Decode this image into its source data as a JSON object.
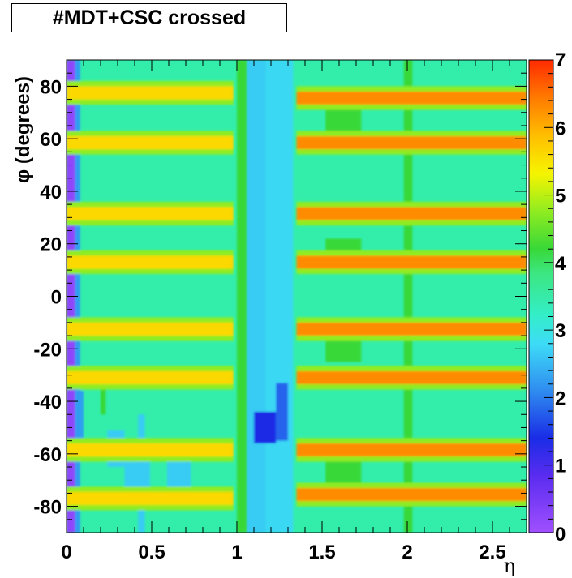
{
  "chart_data": {
    "type": "heatmap",
    "title": "#MDT+CSC crossed",
    "xlabel": "η",
    "ylabel": "φ (degrees)",
    "xlim": [
      0,
      2.7
    ],
    "ylim": [
      -90,
      90
    ],
    "zlim": [
      0,
      7
    ],
    "x_ticks": [
      {
        "value": 0,
        "label": "0"
      },
      {
        "value": 0.5,
        "label": "0.5"
      },
      {
        "value": 1,
        "label": "1"
      },
      {
        "value": 1.5,
        "label": "1.5"
      },
      {
        "value": 2,
        "label": "2"
      },
      {
        "value": 2.5,
        "label": "2.5"
      }
    ],
    "y_ticks": [
      {
        "value": 80,
        "label": "80"
      },
      {
        "value": 60,
        "label": "60"
      },
      {
        "value": 40,
        "label": "40"
      },
      {
        "value": 20,
        "label": "20"
      },
      {
        "value": 0,
        "label": "0"
      },
      {
        "value": -20,
        "label": "-20"
      },
      {
        "value": -40,
        "label": "-40"
      },
      {
        "value": -60,
        "label": "-60"
      },
      {
        "value": -80,
        "label": "-80"
      }
    ],
    "z_ticks": [
      {
        "value": 0,
        "label": "0"
      },
      {
        "value": 1,
        "label": "1"
      },
      {
        "value": 2,
        "label": "2"
      },
      {
        "value": 3,
        "label": "3"
      },
      {
        "value": 4,
        "label": "4"
      },
      {
        "value": 5,
        "label": "5"
      },
      {
        "value": 6,
        "label": "6"
      },
      {
        "value": 7,
        "label": "7"
      }
    ],
    "background_value": 3,
    "regions": [
      {
        "x": [
          0,
          0.05
        ],
        "y": [
          -90,
          90
        ],
        "value": 0.2
      },
      {
        "x": [
          0.05,
          0.08
        ],
        "y": [
          -90,
          90
        ],
        "value": 2
      },
      {
        "x": [
          0.08,
          0.1
        ],
        "y": [
          -58,
          -36
        ],
        "value": 2
      },
      {
        "x": [
          0.24,
          0.34
        ],
        "y": [
          -65,
          -51
        ],
        "value": 2.4
      },
      {
        "x": [
          0.34,
          0.49
        ],
        "y": [
          -76,
          -63
        ],
        "value": 2.4
      },
      {
        "x": [
          0.59,
          0.73
        ],
        "y": [
          -77,
          -63
        ],
        "value": 2.4
      },
      {
        "x": [
          1.05,
          1.17
        ],
        "y": [
          90,
          -90
        ],
        "value": 2.4
      },
      {
        "x": [
          1.17,
          1.33
        ],
        "y": [
          -90,
          90
        ],
        "value": 2.5
      },
      {
        "x": [
          1.1,
          1.23
        ],
        "y": [
          -44,
          -56
        ],
        "value": 1.2
      },
      {
        "x": [
          1.23,
          1.3
        ],
        "y": [
          -33,
          -55
        ],
        "value": 1.6
      },
      {
        "x": [
          1.0,
          1.06
        ],
        "y": [
          -90,
          90
        ],
        "value": 4
      },
      {
        "x": [
          1.52,
          1.73
        ],
        "y": [
          71,
          61
        ],
        "value": 4
      },
      {
        "x": [
          1.52,
          1.73
        ],
        "y": [
          22,
          12
        ],
        "value": 4
      },
      {
        "x": [
          1.52,
          1.73
        ],
        "y": [
          -16,
          -25
        ],
        "value": 4
      },
      {
        "x": [
          1.52,
          1.73
        ],
        "y": [
          -61,
          -71
        ],
        "value": 4
      },
      {
        "x": [
          1.98,
          2.03
        ],
        "y": [
          -90,
          90
        ],
        "value": 4
      },
      {
        "x": [
          0.42,
          0.46
        ],
        "y": [
          -45,
          -90
        ],
        "value": 2.4
      },
      {
        "x": [
          0.2,
          0.23
        ],
        "y": [
          -33,
          -45
        ],
        "value": 4
      }
    ],
    "stripes": [
      {
        "phi": 77.5,
        "x": [
          0.0,
          0.98
        ],
        "value": 5.5
      },
      {
        "phi": 58.5,
        "x": [
          0.0,
          0.98
        ],
        "value": 5.5
      },
      {
        "phi": 31.5,
        "x": [
          0.0,
          0.98
        ],
        "value": 5.5
      },
      {
        "phi": 13.0,
        "x": [
          0.0,
          0.98
        ],
        "value": 5.5
      },
      {
        "phi": -12.5,
        "x": [
          0.0,
          0.98
        ],
        "value": 5.5
      },
      {
        "phi": -31.0,
        "x": [
          0.0,
          0.98
        ],
        "value": 5.5
      },
      {
        "phi": -58.5,
        "x": [
          0.0,
          0.98
        ],
        "value": 5.5
      },
      {
        "phi": -77.0,
        "x": [
          0.0,
          0.98
        ],
        "value": 5.5
      },
      {
        "phi": 75.5,
        "x": [
          1.35,
          2.7
        ],
        "value": 6.2
      },
      {
        "phi": 58.5,
        "x": [
          1.35,
          2.7
        ],
        "value": 6.2
      },
      {
        "phi": 31.5,
        "x": [
          1.35,
          2.7
        ],
        "value": 6.2
      },
      {
        "phi": 13.0,
        "x": [
          1.35,
          2.7
        ],
        "value": 6.2
      },
      {
        "phi": -12.5,
        "x": [
          1.35,
          2.7
        ],
        "value": 6.2
      },
      {
        "phi": -31.0,
        "x": [
          1.35,
          2.7
        ],
        "value": 6.2
      },
      {
        "phi": -58.5,
        "x": [
          1.35,
          2.7
        ],
        "value": 6.2
      },
      {
        "phi": -75.5,
        "x": [
          1.35,
          2.7
        ],
        "value": 6.2
      }
    ]
  }
}
